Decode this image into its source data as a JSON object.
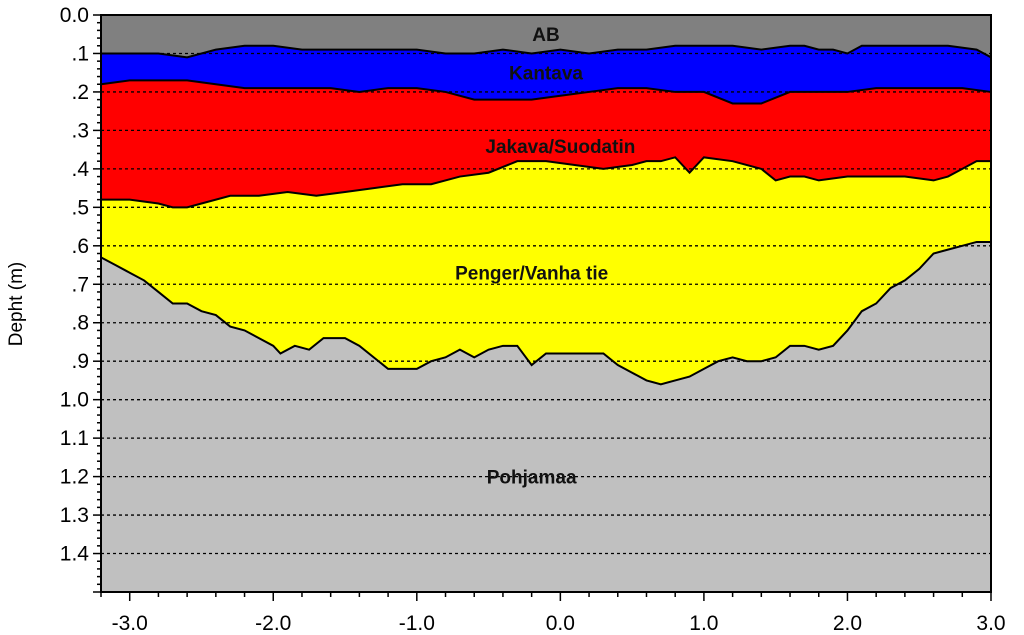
{
  "chart_data": {
    "type": "area",
    "title": "",
    "xlabel": "",
    "ylabel": "Depht (m)",
    "xlim": [
      -3.2,
      3.0
    ],
    "ylim": [
      0.0,
      1.5
    ],
    "y_inverted": true,
    "grid": "horizontal dashed",
    "x_ticks": [
      -3.0,
      -2.0,
      -1.0,
      0.0,
      1.0,
      2.0,
      3.0
    ],
    "x_tick_labels": [
      "-3.0",
      "-2.0",
      "-1.0",
      "0.0",
      "1.0",
      "2.0",
      "3.0"
    ],
    "y_ticks": [
      0.0,
      0.1,
      0.2,
      0.3,
      0.4,
      0.5,
      0.6,
      0.7,
      0.8,
      0.9,
      1.0,
      1.1,
      1.2,
      1.3,
      1.4
    ],
    "y_tick_labels": [
      "0.0",
      ".1",
      ".2",
      ".3",
      ".4",
      ".5",
      ".6",
      ".7",
      ".8",
      ".9",
      "1.0",
      "1.1",
      "1.2",
      "1.3",
      "1.4"
    ],
    "layers": [
      {
        "name": "AB",
        "color": "#808080"
      },
      {
        "name": "Kantava",
        "color": "#0000ff"
      },
      {
        "name": "Jakava/Suodatin",
        "color": "#ff0000"
      },
      {
        "name": "Penger/Vanha tie",
        "color": "#ffff00"
      },
      {
        "name": "Pohjamaa",
        "color": "#c0c0c0"
      }
    ],
    "boundaries": [
      {
        "name": "AB bottom",
        "points": [
          [
            -3.2,
            0.1
          ],
          [
            -3.0,
            0.1
          ],
          [
            -2.8,
            0.1
          ],
          [
            -2.6,
            0.11
          ],
          [
            -2.4,
            0.09
          ],
          [
            -2.2,
            0.08
          ],
          [
            -2.0,
            0.08
          ],
          [
            -1.8,
            0.09
          ],
          [
            -1.6,
            0.09
          ],
          [
            -1.4,
            0.09
          ],
          [
            -1.2,
            0.09
          ],
          [
            -1.0,
            0.09
          ],
          [
            -0.8,
            0.1
          ],
          [
            -0.6,
            0.1
          ],
          [
            -0.4,
            0.09
          ],
          [
            -0.2,
            0.1
          ],
          [
            0.0,
            0.09
          ],
          [
            0.2,
            0.1
          ],
          [
            0.4,
            0.09
          ],
          [
            0.6,
            0.09
          ],
          [
            0.8,
            0.08
          ],
          [
            1.0,
            0.08
          ],
          [
            1.2,
            0.08
          ],
          [
            1.4,
            0.09
          ],
          [
            1.6,
            0.08
          ],
          [
            1.7,
            0.08
          ],
          [
            1.8,
            0.09
          ],
          [
            1.9,
            0.09
          ],
          [
            2.0,
            0.1
          ],
          [
            2.1,
            0.08
          ],
          [
            2.3,
            0.08
          ],
          [
            2.5,
            0.08
          ],
          [
            2.7,
            0.08
          ],
          [
            2.9,
            0.09
          ],
          [
            3.0,
            0.11
          ]
        ]
      },
      {
        "name": "Kantava bottom",
        "points": [
          [
            -3.2,
            0.18
          ],
          [
            -3.0,
            0.17
          ],
          [
            -2.8,
            0.17
          ],
          [
            -2.6,
            0.17
          ],
          [
            -2.4,
            0.18
          ],
          [
            -2.2,
            0.19
          ],
          [
            -2.0,
            0.19
          ],
          [
            -1.8,
            0.19
          ],
          [
            -1.6,
            0.19
          ],
          [
            -1.4,
            0.2
          ],
          [
            -1.2,
            0.19
          ],
          [
            -1.0,
            0.19
          ],
          [
            -0.8,
            0.2
          ],
          [
            -0.6,
            0.22
          ],
          [
            -0.4,
            0.22
          ],
          [
            -0.2,
            0.22
          ],
          [
            0.0,
            0.21
          ],
          [
            0.2,
            0.2
          ],
          [
            0.4,
            0.19
          ],
          [
            0.6,
            0.19
          ],
          [
            0.8,
            0.2
          ],
          [
            1.0,
            0.2
          ],
          [
            1.2,
            0.23
          ],
          [
            1.4,
            0.23
          ],
          [
            1.6,
            0.2
          ],
          [
            1.8,
            0.2
          ],
          [
            2.0,
            0.2
          ],
          [
            2.2,
            0.19
          ],
          [
            2.4,
            0.19
          ],
          [
            2.6,
            0.19
          ],
          [
            2.8,
            0.19
          ],
          [
            3.0,
            0.2
          ]
        ]
      },
      {
        "name": "Jakava/Suodatin bottom",
        "points": [
          [
            -3.2,
            0.48
          ],
          [
            -3.0,
            0.48
          ],
          [
            -2.8,
            0.49
          ],
          [
            -2.7,
            0.5
          ],
          [
            -2.6,
            0.5
          ],
          [
            -2.5,
            0.49
          ],
          [
            -2.3,
            0.47
          ],
          [
            -2.1,
            0.47
          ],
          [
            -1.9,
            0.46
          ],
          [
            -1.7,
            0.47
          ],
          [
            -1.5,
            0.46
          ],
          [
            -1.3,
            0.45
          ],
          [
            -1.1,
            0.44
          ],
          [
            -0.9,
            0.44
          ],
          [
            -0.7,
            0.42
          ],
          [
            -0.5,
            0.41
          ],
          [
            -0.3,
            0.38
          ],
          [
            -0.1,
            0.38
          ],
          [
            0.1,
            0.39
          ],
          [
            0.3,
            0.4
          ],
          [
            0.5,
            0.39
          ],
          [
            0.6,
            0.38
          ],
          [
            0.7,
            0.38
          ],
          [
            0.8,
            0.37
          ],
          [
            0.9,
            0.41
          ],
          [
            1.0,
            0.37
          ],
          [
            1.2,
            0.38
          ],
          [
            1.4,
            0.4
          ],
          [
            1.5,
            0.43
          ],
          [
            1.6,
            0.42
          ],
          [
            1.7,
            0.42
          ],
          [
            1.8,
            0.43
          ],
          [
            2.0,
            0.42
          ],
          [
            2.2,
            0.42
          ],
          [
            2.4,
            0.42
          ],
          [
            2.6,
            0.43
          ],
          [
            2.7,
            0.42
          ],
          [
            2.8,
            0.4
          ],
          [
            2.9,
            0.38
          ],
          [
            3.0,
            0.38
          ]
        ]
      },
      {
        "name": "Penger/Vanha tie bottom",
        "points": [
          [
            -3.2,
            0.63
          ],
          [
            -3.1,
            0.65
          ],
          [
            -3.0,
            0.67
          ],
          [
            -2.9,
            0.69
          ],
          [
            -2.8,
            0.72
          ],
          [
            -2.7,
            0.75
          ],
          [
            -2.6,
            0.75
          ],
          [
            -2.5,
            0.77
          ],
          [
            -2.4,
            0.78
          ],
          [
            -2.3,
            0.81
          ],
          [
            -2.2,
            0.82
          ],
          [
            -2.1,
            0.84
          ],
          [
            -2.0,
            0.86
          ],
          [
            -1.95,
            0.88
          ],
          [
            -1.85,
            0.86
          ],
          [
            -1.75,
            0.87
          ],
          [
            -1.65,
            0.84
          ],
          [
            -1.5,
            0.84
          ],
          [
            -1.4,
            0.86
          ],
          [
            -1.3,
            0.89
          ],
          [
            -1.2,
            0.92
          ],
          [
            -1.1,
            0.92
          ],
          [
            -1.0,
            0.92
          ],
          [
            -0.9,
            0.9
          ],
          [
            -0.8,
            0.89
          ],
          [
            -0.7,
            0.87
          ],
          [
            -0.6,
            0.89
          ],
          [
            -0.5,
            0.87
          ],
          [
            -0.4,
            0.86
          ],
          [
            -0.3,
            0.86
          ],
          [
            -0.2,
            0.91
          ],
          [
            -0.1,
            0.88
          ],
          [
            0.0,
            0.88
          ],
          [
            0.1,
            0.88
          ],
          [
            0.2,
            0.88
          ],
          [
            0.3,
            0.88
          ],
          [
            0.4,
            0.91
          ],
          [
            0.5,
            0.93
          ],
          [
            0.6,
            0.95
          ],
          [
            0.7,
            0.96
          ],
          [
            0.8,
            0.95
          ],
          [
            0.9,
            0.94
          ],
          [
            1.0,
            0.92
          ],
          [
            1.1,
            0.9
          ],
          [
            1.2,
            0.89
          ],
          [
            1.3,
            0.9
          ],
          [
            1.4,
            0.9
          ],
          [
            1.5,
            0.89
          ],
          [
            1.6,
            0.86
          ],
          [
            1.7,
            0.86
          ],
          [
            1.8,
            0.87
          ],
          [
            1.9,
            0.86
          ],
          [
            2.0,
            0.82
          ],
          [
            2.1,
            0.77
          ],
          [
            2.2,
            0.75
          ],
          [
            2.3,
            0.71
          ],
          [
            2.4,
            0.69
          ],
          [
            2.5,
            0.66
          ],
          [
            2.6,
            0.62
          ],
          [
            2.7,
            0.61
          ],
          [
            2.8,
            0.6
          ],
          [
            2.9,
            0.59
          ],
          [
            3.0,
            0.59
          ]
        ]
      }
    ],
    "labels": [
      {
        "text": "AB",
        "x": -0.1,
        "y": 0.05
      },
      {
        "text": "Kantava",
        "x": -0.1,
        "y": 0.15
      },
      {
        "text": "Jakava/Suodatin",
        "x": 0.0,
        "y": 0.34
      },
      {
        "text": "Penger/Vanha tie",
        "x": -0.2,
        "y": 0.67
      },
      {
        "text": "Pohjamaa",
        "x": -0.2,
        "y": 1.2
      }
    ]
  }
}
